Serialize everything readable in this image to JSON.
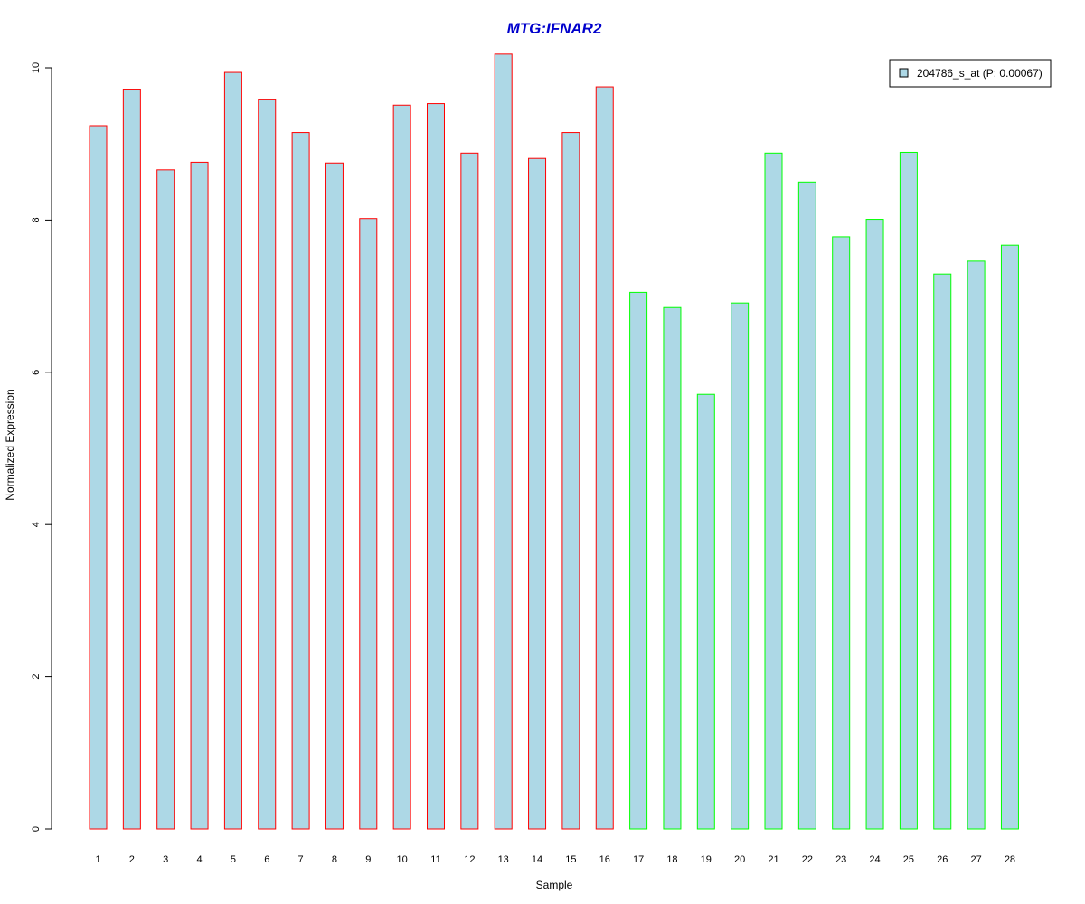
{
  "chart_data": {
    "type": "bar",
    "title": "MTG:IFNAR2",
    "xlabel": "Sample",
    "ylabel": "Normalized Expression",
    "ylim": [
      0,
      10
    ],
    "y_ticks": [
      0,
      2,
      4,
      6,
      8,
      10
    ],
    "categories": [
      "1",
      "2",
      "3",
      "4",
      "5",
      "6",
      "7",
      "8",
      "9",
      "10",
      "11",
      "12",
      "13",
      "14",
      "15",
      "16",
      "17",
      "18",
      "19",
      "20",
      "21",
      "22",
      "23",
      "24",
      "25",
      "26",
      "27",
      "28"
    ],
    "series": [
      {
        "name": "204786_s_at (P: 0.00067)",
        "values": [
          9.24,
          9.71,
          8.66,
          8.76,
          9.94,
          9.58,
          9.15,
          8.75,
          8.02,
          9.51,
          9.53,
          8.88,
          10.18,
          8.81,
          9.15,
          9.75,
          7.05,
          6.85,
          5.71,
          6.91,
          8.88,
          8.5,
          7.78,
          8.01,
          8.89,
          7.29,
          7.46,
          7.67
        ]
      }
    ],
    "fill_color": "#add8e6",
    "group_border_colors": [
      "#ff0000",
      "#00ff00"
    ],
    "group_sizes": [
      16,
      12
    ],
    "grid": false,
    "legend_position": "top-right",
    "title_color": "#0000cc"
  }
}
